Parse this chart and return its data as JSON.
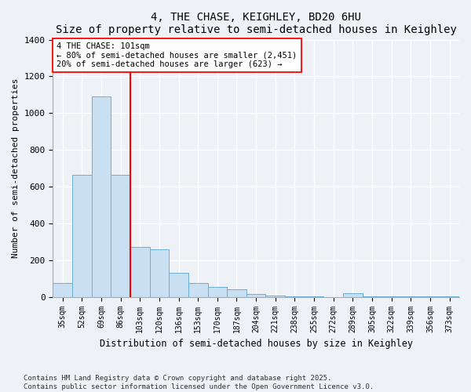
{
  "title": "4, THE CHASE, KEIGHLEY, BD20 6HU",
  "subtitle": "Size of property relative to semi-detached houses in Keighley",
  "xlabel": "Distribution of semi-detached houses by size in Keighley",
  "ylabel": "Number of semi-detached properties",
  "categories": [
    "35sqm",
    "52sqm",
    "69sqm",
    "86sqm",
    "103sqm",
    "120sqm",
    "136sqm",
    "153sqm",
    "170sqm",
    "187sqm",
    "204sqm",
    "221sqm",
    "238sqm",
    "255sqm",
    "272sqm",
    "289sqm",
    "305sqm",
    "322sqm",
    "339sqm",
    "356sqm",
    "373sqm"
  ],
  "values": [
    75,
    665,
    1090,
    665,
    270,
    260,
    130,
    75,
    55,
    40,
    15,
    8,
    3,
    1,
    0,
    20,
    3,
    3,
    1,
    1,
    1
  ],
  "bar_color": "#c9dff2",
  "bar_edge_color": "#6aaed6",
  "red_line_x": 3.5,
  "annotation_line1": "4 THE CHASE: 101sqm",
  "annotation_line2": "← 80% of semi-detached houses are smaller (2,451)",
  "annotation_line3": "20% of semi-detached houses are larger (623) →",
  "ylim": [
    0,
    1400
  ],
  "yticks": [
    0,
    200,
    400,
    600,
    800,
    1000,
    1200,
    1400
  ],
  "footer_line1": "Contains HM Land Registry data © Crown copyright and database right 2025.",
  "footer_line2": "Contains public sector information licensed under the Open Government Licence v3.0.",
  "background_color": "#eef2f7",
  "plot_bg_color": "#eef2f7",
  "grid_color": "#ffffff",
  "title_fontsize": 10,
  "subtitle_fontsize": 9
}
